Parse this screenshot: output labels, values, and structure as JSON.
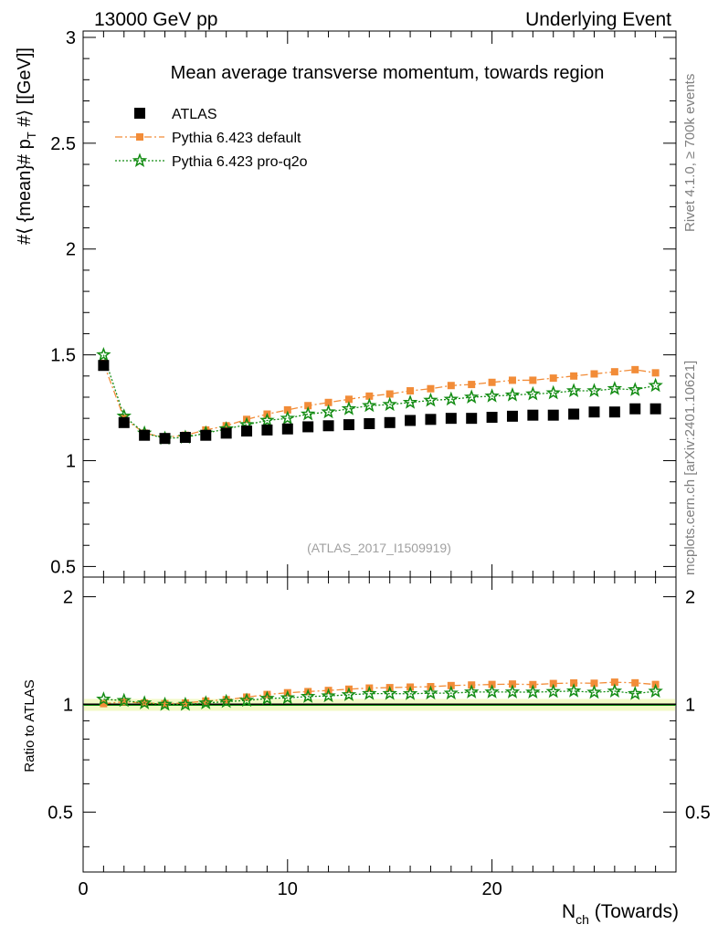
{
  "header": {
    "energy_label": "13000 GeV pp",
    "process_label": "Underlying Event"
  },
  "side_labels": {
    "rivet": "Rivet 4.1.0, ≥ 700k events",
    "source": "mcplots.cern.ch [arXiv:2401.10621]"
  },
  "chart_data": [
    {
      "type": "scatter",
      "title": "Mean average transverse momentum, towards region",
      "analysis_id": "(ATLAS_2017_I1509919)",
      "xlabel": "N_ch (Towards)",
      "ylabel": "#⟨ {mean}# p_T #⟩ [[GeV]]",
      "xlim": [
        0,
        29
      ],
      "ylim": [
        0.45,
        3.03
      ],
      "x_ticks": [
        0,
        10,
        20
      ],
      "y_ticks": [
        0.5,
        1,
        1.5,
        2,
        2.5,
        3
      ],
      "x_ticks_labels": [
        "0",
        "10",
        "20"
      ],
      "y_ticks_labels": [
        "0.5",
        "1",
        "1.5",
        "2",
        "2.5",
        "3"
      ],
      "legend_position": "top-left",
      "x": [
        1,
        2,
        3,
        4,
        5,
        6,
        7,
        8,
        9,
        10,
        11,
        12,
        13,
        14,
        15,
        16,
        17,
        18,
        19,
        20,
        21,
        22,
        23,
        24,
        25,
        26,
        27,
        28
      ],
      "series": [
        {
          "name": "ATLAS",
          "color": "#000000",
          "marker": "square",
          "values": [
            1.45,
            1.18,
            1.12,
            1.105,
            1.11,
            1.12,
            1.13,
            1.14,
            1.145,
            1.15,
            1.16,
            1.165,
            1.17,
            1.175,
            1.18,
            1.19,
            1.195,
            1.2,
            1.2,
            1.205,
            1.21,
            1.215,
            1.215,
            1.22,
            1.23,
            1.23,
            1.245,
            1.245
          ]
        },
        {
          "name": "Pythia 6.423 default",
          "color": "#f28c38",
          "marker": "square-small",
          "values": [
            1.46,
            1.2,
            1.13,
            1.11,
            1.12,
            1.145,
            1.165,
            1.195,
            1.22,
            1.24,
            1.26,
            1.275,
            1.29,
            1.305,
            1.315,
            1.33,
            1.34,
            1.355,
            1.36,
            1.37,
            1.38,
            1.38,
            1.39,
            1.4,
            1.41,
            1.42,
            1.43,
            1.415
          ]
        },
        {
          "name": "Pythia 6.423 pro-q2o",
          "color": "#138c13",
          "marker": "star",
          "values": [
            1.5,
            1.21,
            1.13,
            1.105,
            1.11,
            1.13,
            1.15,
            1.17,
            1.19,
            1.2,
            1.22,
            1.23,
            1.245,
            1.26,
            1.265,
            1.275,
            1.285,
            1.29,
            1.3,
            1.305,
            1.31,
            1.315,
            1.32,
            1.33,
            1.33,
            1.34,
            1.335,
            1.355
          ]
        }
      ]
    },
    {
      "type": "scatter",
      "title": "",
      "xlabel": "N_ch (Towards)",
      "ylabel": "Ratio to ATLAS",
      "xlim": [
        0,
        29
      ],
      "ylim": [
        0.34,
        2.27
      ],
      "y_ticks": [
        0.5,
        1,
        2
      ],
      "y_ticks_labels": [
        "0.5",
        "1",
        "2"
      ],
      "reference_line": 1,
      "x": [
        1,
        2,
        3,
        4,
        5,
        6,
        7,
        8,
        9,
        10,
        11,
        12,
        13,
        14,
        15,
        16,
        17,
        18,
        19,
        20,
        21,
        22,
        23,
        24,
        25,
        26,
        27,
        28
      ],
      "series": [
        {
          "name": "Pythia 6.423 default",
          "color": "#f28c38",
          "marker": "square-small",
          "values": [
            1.005,
            1.017,
            1.009,
            1.005,
            1.009,
            1.022,
            1.031,
            1.048,
            1.066,
            1.078,
            1.086,
            1.094,
            1.103,
            1.111,
            1.114,
            1.118,
            1.121,
            1.129,
            1.133,
            1.137,
            1.14,
            1.136,
            1.144,
            1.148,
            1.146,
            1.154,
            1.149,
            1.137
          ]
        },
        {
          "name": "Pythia 6.423 pro-q2o",
          "color": "#138c13",
          "marker": "star",
          "values": [
            1.034,
            1.025,
            1.009,
            1.0,
            1.0,
            1.009,
            1.018,
            1.026,
            1.039,
            1.043,
            1.052,
            1.056,
            1.064,
            1.072,
            1.072,
            1.071,
            1.075,
            1.075,
            1.083,
            1.083,
            1.083,
            1.082,
            1.086,
            1.09,
            1.081,
            1.089,
            1.072,
            1.088
          ]
        }
      ]
    }
  ]
}
